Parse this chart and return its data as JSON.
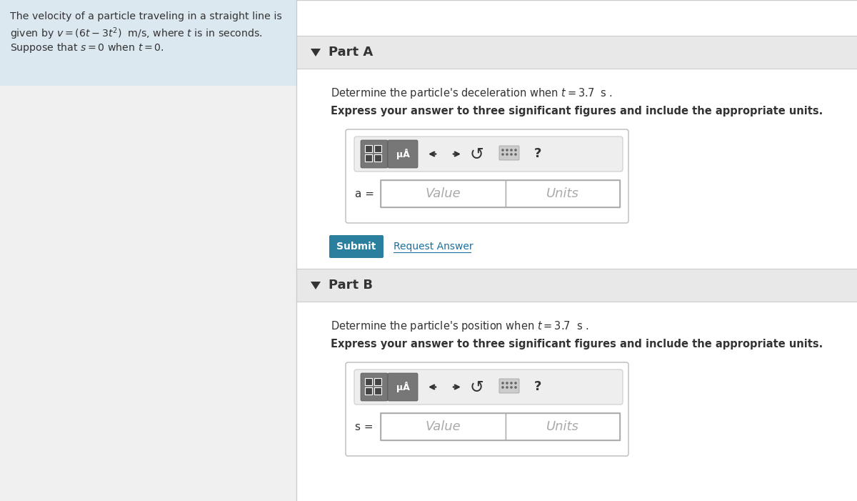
{
  "bg_color": "#f0f0f0",
  "white": "#ffffff",
  "light_gray": "#e8e8e8",
  "text_color": "#333333",
  "teal_btn": "#2a7f9e",
  "link_color": "#1a6fa0",
  "left_panel_bg": "#dce8f0",
  "part_a_header": "Part A",
  "part_a_desc": "Determine the particle's deceleration when $t = 3.7$  s .",
  "part_a_express": "Express your answer to three significant figures and include the appropriate units.",
  "part_a_label": "a =",
  "part_b_header": "Part B",
  "part_b_desc": "Determine the particle's position when $t = 3.7$  s .",
  "part_b_express": "Express your answer to three significant figures and include the appropriate units.",
  "part_b_label": "s =",
  "value_placeholder": "Value",
  "units_placeholder": "Units",
  "submit_text": "Submit",
  "request_answer_text": "Request Answer",
  "left_line1": "The velocity of a particle traveling in a straight line is",
  "left_line2": "given by $v = (6t - 3t^2)$  m/s, where $t$ is in seconds.",
  "left_line3": "Suppose that $s = 0$ when $t = 0$."
}
